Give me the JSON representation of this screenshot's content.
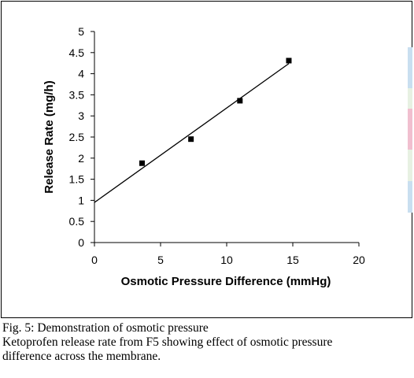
{
  "chart_data": {
    "type": "scatter",
    "xlabel": "Osmotic Pressure Difference (mmHg)",
    "ylabel": "Release Rate (mg/h)",
    "xlim": [
      0,
      20
    ],
    "ylim": [
      0,
      5
    ],
    "x_ticks": [
      "0",
      "5",
      "10",
      "15",
      "20"
    ],
    "y_ticks": [
      "0",
      "0.5",
      "1",
      "1.5",
      "2",
      "2.5",
      "3",
      "3.5",
      "4",
      "4.5",
      "5"
    ],
    "points": [
      {
        "x": 3.6,
        "y": 1.88
      },
      {
        "x": 7.3,
        "y": 2.45
      },
      {
        "x": 11.0,
        "y": 3.36
      },
      {
        "x": 14.7,
        "y": 4.31
      }
    ],
    "trendline": {
      "x_start": 0,
      "y_start": 0.95,
      "x_end": 14.7,
      "y_end": 4.24
    },
    "grid": false,
    "legend": "none",
    "colors": {
      "marker": "#000000",
      "line": "#000000"
    }
  },
  "caption": {
    "title": "Fig. 5: Demonstration of osmotic pressure",
    "line1": "Ketoprofen release rate from F5 showing effect of osmotic pressure",
    "line2": "difference across the membrane."
  },
  "decor": {
    "edge_colors": [
      "#c9dff0",
      "#e7f1e2",
      "#f1bfcf",
      "#e7f1e2",
      "#c9dff0"
    ]
  }
}
